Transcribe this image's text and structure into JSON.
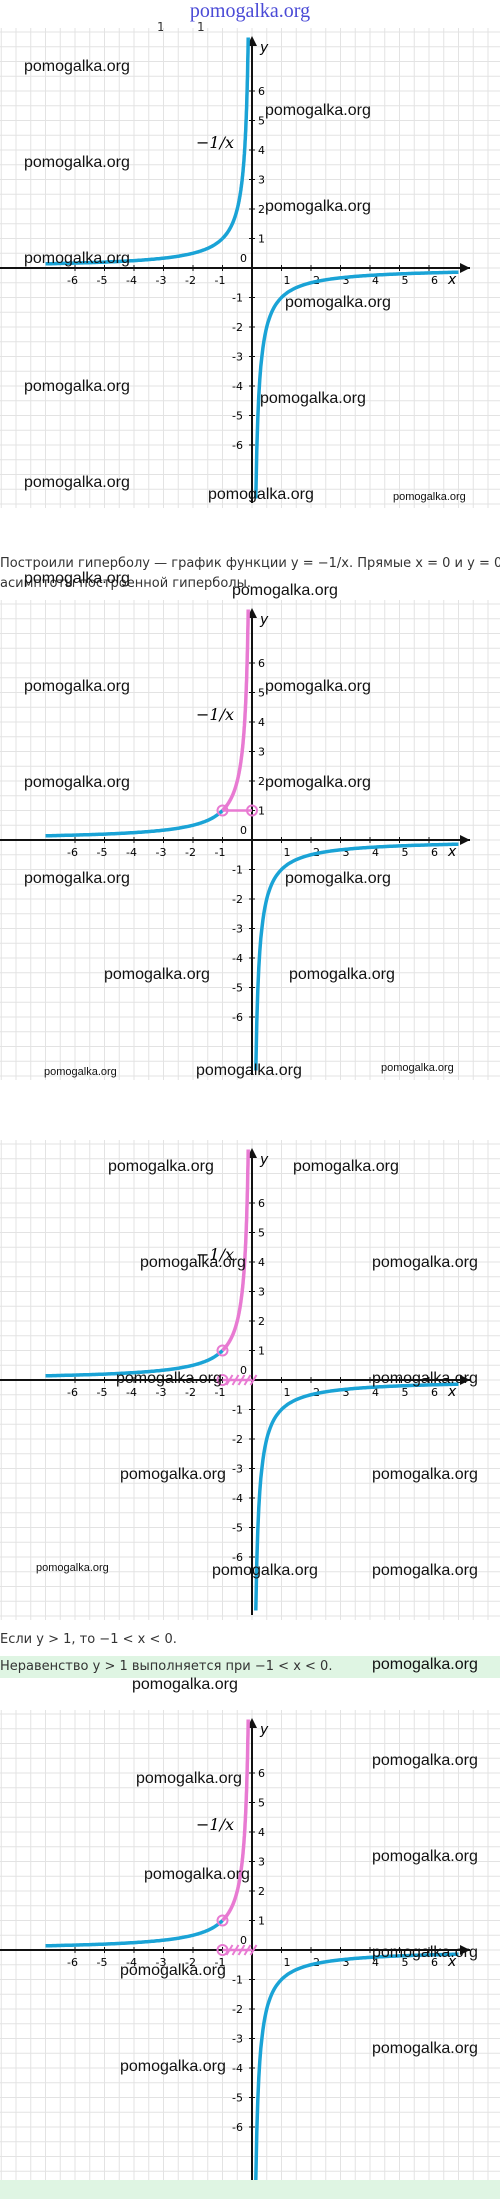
{
  "header": {
    "site_title": "pomogalka.org",
    "top_digits": [
      "1",
      "1"
    ]
  },
  "watermark": "pomogalka.org",
  "graph": {
    "x_label": "x",
    "y_label": "y",
    "x_ticks": [
      "-6",
      "-5",
      "-4",
      "-3",
      "-2",
      "-1",
      "0",
      "1",
      "2",
      "3",
      "4",
      "5",
      "6"
    ],
    "y_ticks": [
      "6",
      "5",
      "4",
      "3",
      "2",
      "1",
      "-1",
      "-2",
      "-3",
      "-4",
      "-5",
      "-6"
    ],
    "function_label": "−1/x",
    "curve_color": "#1aa3d6",
    "highlight_color": "#e87ad2",
    "grid_color": "#e3e3e3"
  },
  "text": {
    "line1": "Построили гиперболу — график функции y = −1/x. Прямые x = 0 и y = 0 —",
    "line2": "асимптоты построенной гиперболы.",
    "line3": "Если y > 1, то −1 < x < 0.",
    "line4": "Неравенство y > 1 выполняется при −1 < x < 0."
  }
}
